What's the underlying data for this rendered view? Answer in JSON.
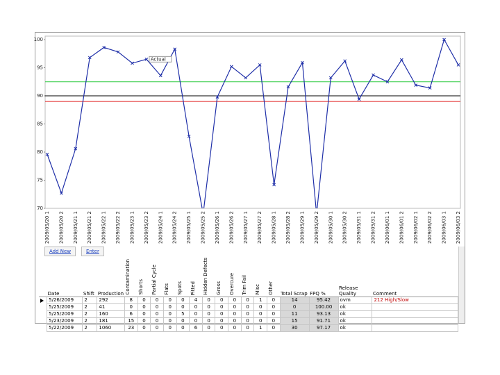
{
  "chart_data": {
    "type": "line",
    "categories": [
      "2009/05/20 1",
      "2009/05/20 2",
      "2009/05/21 1",
      "2009/05/21 2",
      "2009/05/22 1",
      "2009/05/22 2",
      "2009/05/23 1",
      "2009/05/23 2",
      "2009/05/24 1",
      "2009/05/24 2",
      "2009/05/25 1",
      "2009/05/25 2",
      "2009/05/26 1",
      "2009/05/26 2",
      "2009/05/27 1",
      "2009/05/27 2",
      "2009/05/28 1",
      "2009/05/28 2",
      "2009/05/29 1",
      "2009/05/29 2",
      "2009/05/30 1",
      "2009/05/30 2",
      "2009/05/31 1",
      "2009/05/31 2",
      "2009/06/01 1",
      "2009/06/01 2",
      "2009/06/02 1",
      "2009/06/02 2",
      "2009/06/03 1",
      "2009/06/03 2"
    ],
    "series": [
      {
        "color": "#1f2fa8",
        "values": [
          79.6,
          72.7,
          80.6,
          96.8,
          98.6,
          97.8,
          95.8,
          96.5,
          93.6,
          98.3,
          82.8,
          69,
          89.8,
          95.2,
          93.2,
          95.5,
          74.2,
          91.6,
          95.9,
          69,
          93.2,
          96.2,
          89.4,
          93.7,
          92.5,
          96.4,
          91.9,
          91.4,
          100,
          95.5
        ]
      }
    ],
    "reference_lines": [
      {
        "value": 92.5,
        "color": "#2ecc40"
      },
      {
        "value": 90,
        "color": "#000000"
      },
      {
        "value": 89,
        "color": "#e02020"
      }
    ],
    "annotation": {
      "text": "Actual",
      "index": 7
    },
    "ylim": [
      70,
      100
    ],
    "yticks": [
      70,
      75,
      80,
      85,
      90,
      95,
      100
    ],
    "grid": false
  },
  "grid": {
    "buttons": [
      "Add New",
      "Enter"
    ],
    "columns": [
      "Date",
      "Shift",
      "Production",
      "Contamination",
      "Shorts",
      "Partial Cycle",
      "Flats",
      "Spots",
      "Pitted",
      "Hidden Defects",
      "Gross",
      "Overcure",
      "Trim Fail",
      "Misc",
      "Other",
      "Total Scrap",
      "FPQ %",
      "Release Quality",
      "Comment"
    ],
    "rows": [
      [
        "5/26/2009",
        "2",
        "292",
        "8",
        "0",
        "0",
        "0",
        "0",
        "4",
        "0",
        "0",
        "0",
        "0",
        "1",
        "0",
        "14",
        "95.42",
        "ovm",
        "212 High/Slow"
      ],
      [
        "5/25/2009",
        "2",
        "41",
        "0",
        "0",
        "0",
        "0",
        "0",
        "0",
        "0",
        "0",
        "0",
        "0",
        "0",
        "0",
        "0",
        "100.00",
        "ok",
        ""
      ],
      [
        "5/25/2009",
        "2",
        "160",
        "6",
        "0",
        "0",
        "0",
        "5",
        "0",
        "0",
        "0",
        "0",
        "0",
        "0",
        "0",
        "11",
        "93.13",
        "ok",
        ""
      ],
      [
        "5/23/2009",
        "2",
        "181",
        "15",
        "0",
        "0",
        "0",
        "0",
        "0",
        "0",
        "0",
        "0",
        "0",
        "0",
        "0",
        "15",
        "91.71",
        "ok",
        ""
      ],
      [
        "5/22/2009",
        "2",
        "1060",
        "23",
        "0",
        "0",
        "0",
        "0",
        "6",
        "0",
        "0",
        "0",
        "0",
        "1",
        "0",
        "30",
        "97.17",
        "ok",
        ""
      ]
    ]
  }
}
